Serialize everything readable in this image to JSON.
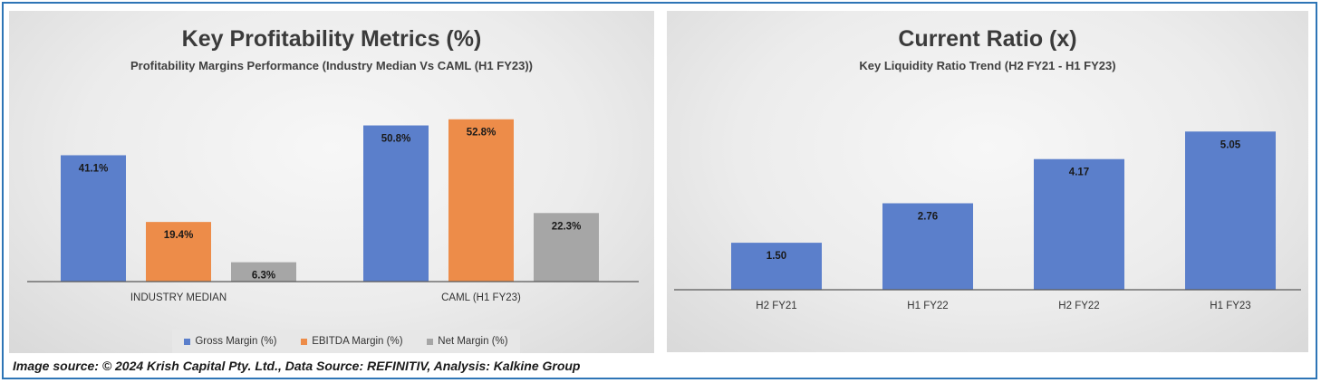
{
  "footer": {
    "source_text": "Image source: © 2024 Krish Capital Pty. Ltd., Data Source: REFINITIV, Analysis: Kalkine Group"
  },
  "chart_data": [
    {
      "type": "bar",
      "title": "Key Profitability Metrics (%)",
      "subtitle": "Profitability Margins Performance (Industry Median Vs CAML (H1 FY23))",
      "categories": [
        "INDUSTRY MEDIAN",
        "CAML (H1 FY23)"
      ],
      "series": [
        {
          "name": "Gross Margin (%)",
          "values": [
            41.1,
            50.8
          ],
          "labels": [
            "41.1%",
            "50.8%"
          ],
          "color": "#5b7fcb"
        },
        {
          "name": "EBITDA Margin (%)",
          "values": [
            19.4,
            52.8
          ],
          "labels": [
            "19.4%",
            "52.8%"
          ],
          "color": "#ed8c49"
        },
        {
          "name": "Net Margin (%)",
          "values": [
            6.3,
            22.3
          ],
          "labels": [
            "6.3%",
            "22.3%"
          ],
          "color": "#a6a6a6"
        }
      ],
      "ylim": [
        0,
        56
      ],
      "grid": false,
      "legend": "bottom"
    },
    {
      "type": "bar",
      "title": "Current Ratio (x)",
      "subtitle": "Key Liquidity Ratio Trend (H2 FY21 - H1 FY23)",
      "categories": [
        "H2 FY21",
        "H1 FY22",
        "H2 FY22",
        "H1 FY23"
      ],
      "series": [
        {
          "values": [
            1.5,
            2.76,
            4.17,
            5.05
          ],
          "labels": [
            "1.50",
            "2.76",
            "4.17",
            "5.05"
          ],
          "color": "#5b7fcb"
        }
      ],
      "ylim": [
        0,
        5.7
      ],
      "grid": false,
      "legend": "none"
    }
  ]
}
